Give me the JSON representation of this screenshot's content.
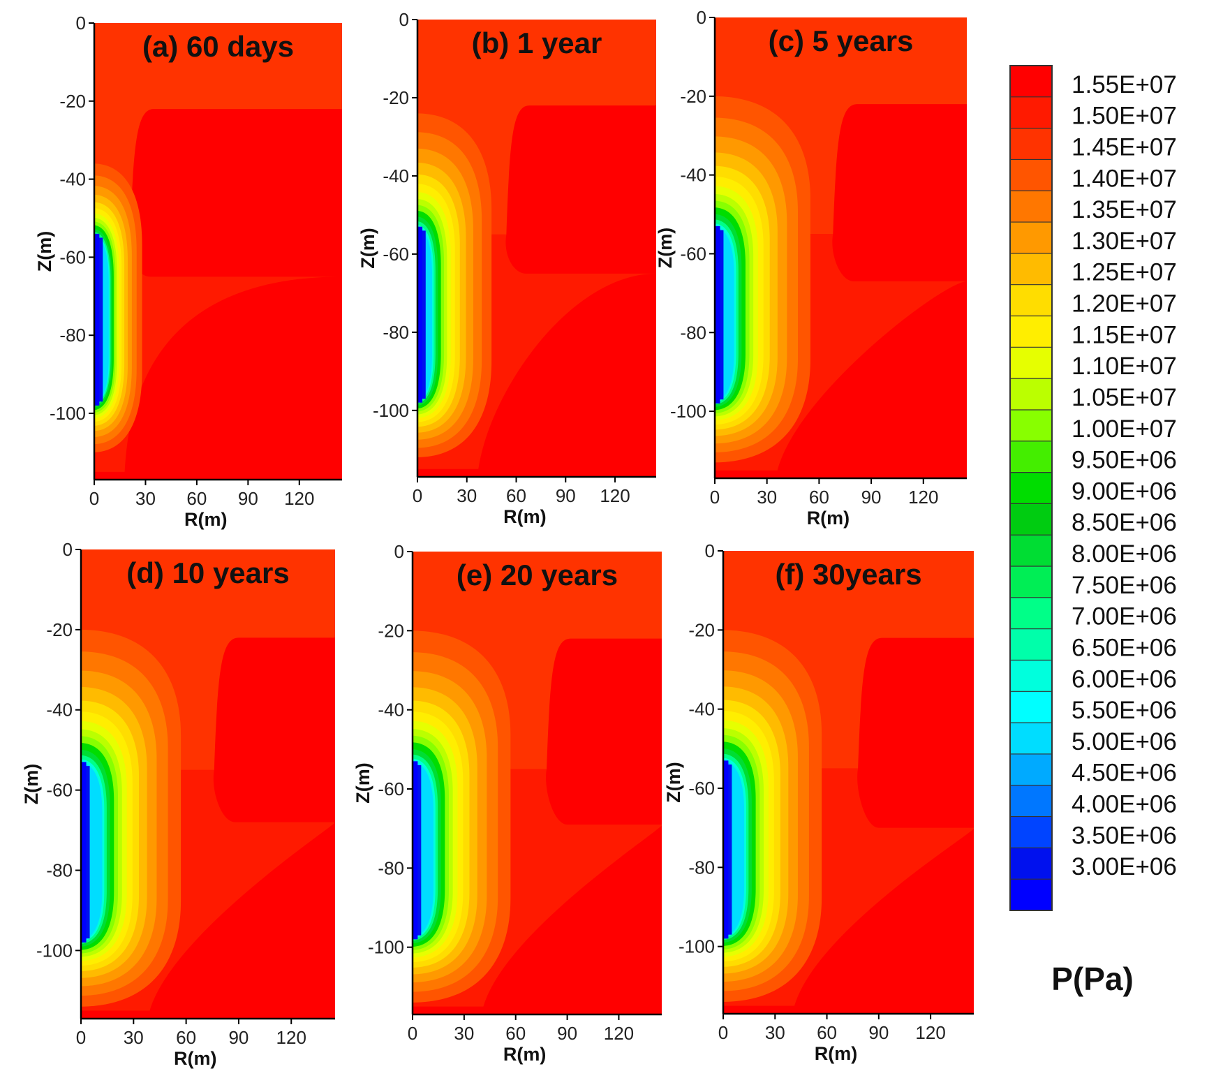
{
  "chart_data": {
    "type": "heatmap",
    "variable": "P(Pa)",
    "panels": [
      {
        "title": "(a) 60 days",
        "shape": {
          "core_top": -55,
          "core_bottom": -97,
          "core_r": 5,
          "inner_r": 8,
          "outer_r": 28,
          "top_z": -36,
          "bottom_z": -110,
          "transition_r": 25,
          "transition_upper_z": -22,
          "transition_lower_z": -65,
          "transition_width": 12
        }
      },
      {
        "title": "(b) 1 year",
        "shape": {
          "core_top": -54,
          "core_bottom": -97,
          "core_r": 5,
          "inner_r": 8,
          "outer_r": 45,
          "top_z": -24,
          "bottom_z": -112,
          "transition_r": 58,
          "transition_upper_z": -22,
          "transition_lower_z": -65,
          "transition_width": 35
        }
      },
      {
        "title": "(c) 5 years",
        "shape": {
          "core_top": -54,
          "core_bottom": -97,
          "core_r": 5,
          "inner_r": 10,
          "outer_r": 55,
          "top_z": -20,
          "bottom_z": -113,
          "transition_r": 72,
          "transition_upper_z": -22,
          "transition_lower_z": -67,
          "transition_width": 60
        }
      },
      {
        "title": "(d) 10 years",
        "shape": {
          "core_top": -54,
          "core_bottom": -97,
          "core_r": 5,
          "inner_r": 11,
          "outer_r": 57,
          "top_z": -20,
          "bottom_z": -114,
          "transition_r": 80,
          "transition_upper_z": -22,
          "transition_lower_z": -68,
          "transition_width": 68
        }
      },
      {
        "title": "(e) 20 years",
        "shape": {
          "core_top": -54,
          "core_bottom": -97,
          "core_r": 5,
          "inner_r": 11,
          "outer_r": 57,
          "top_z": -20,
          "bottom_z": -114,
          "transition_r": 82,
          "transition_upper_z": -22,
          "transition_lower_z": -69,
          "transition_width": 68
        }
      },
      {
        "title": "(f) 30years",
        "shape": {
          "core_top": -54,
          "core_bottom": -97,
          "core_r": 5,
          "inner_r": 11,
          "outer_r": 57,
          "top_z": -20,
          "bottom_z": -114,
          "transition_r": 82,
          "transition_upper_z": -22,
          "transition_lower_z": -70,
          "transition_width": 68
        }
      }
    ],
    "xlabel": "R(m)",
    "ylabel": "Z(m)",
    "xlim": [
      0,
      145
    ],
    "ylim": [
      -117,
      0
    ],
    "xticks": [
      0,
      30,
      60,
      90,
      120
    ],
    "yticks": [
      0,
      -20,
      -40,
      -60,
      -80,
      -100
    ],
    "colorbar": {
      "title": "P(Pa)",
      "levels": [
        "1.55E+07",
        "1.50E+07",
        "1.45E+07",
        "1.40E+07",
        "1.35E+07",
        "1.30E+07",
        "1.25E+07",
        "1.20E+07",
        "1.15E+07",
        "1.10E+07",
        "1.05E+07",
        "1.00E+07",
        "9.50E+06",
        "9.00E+06",
        "8.50E+06",
        "8.00E+06",
        "7.50E+06",
        "7.00E+06",
        "6.50E+06",
        "6.00E+06",
        "5.50E+06",
        "5.00E+06",
        "4.50E+06",
        "4.00E+06",
        "3.50E+06",
        "3.00E+06"
      ],
      "colors": [
        "#ff0000",
        "#ff1a00",
        "#ff3300",
        "#ff5500",
        "#ff7700",
        "#ff9900",
        "#ffbb00",
        "#ffdd00",
        "#ffee00",
        "#e6ff00",
        "#bbff00",
        "#88ff00",
        "#44ee00",
        "#00dd00",
        "#00cc11",
        "#00dd33",
        "#00ee55",
        "#00ff88",
        "#00ffaa",
        "#00ffdd",
        "#00ffff",
        "#00ddff",
        "#00aaff",
        "#0077ff",
        "#0044ff",
        "#0011ee",
        "#0000ff"
      ]
    }
  }
}
